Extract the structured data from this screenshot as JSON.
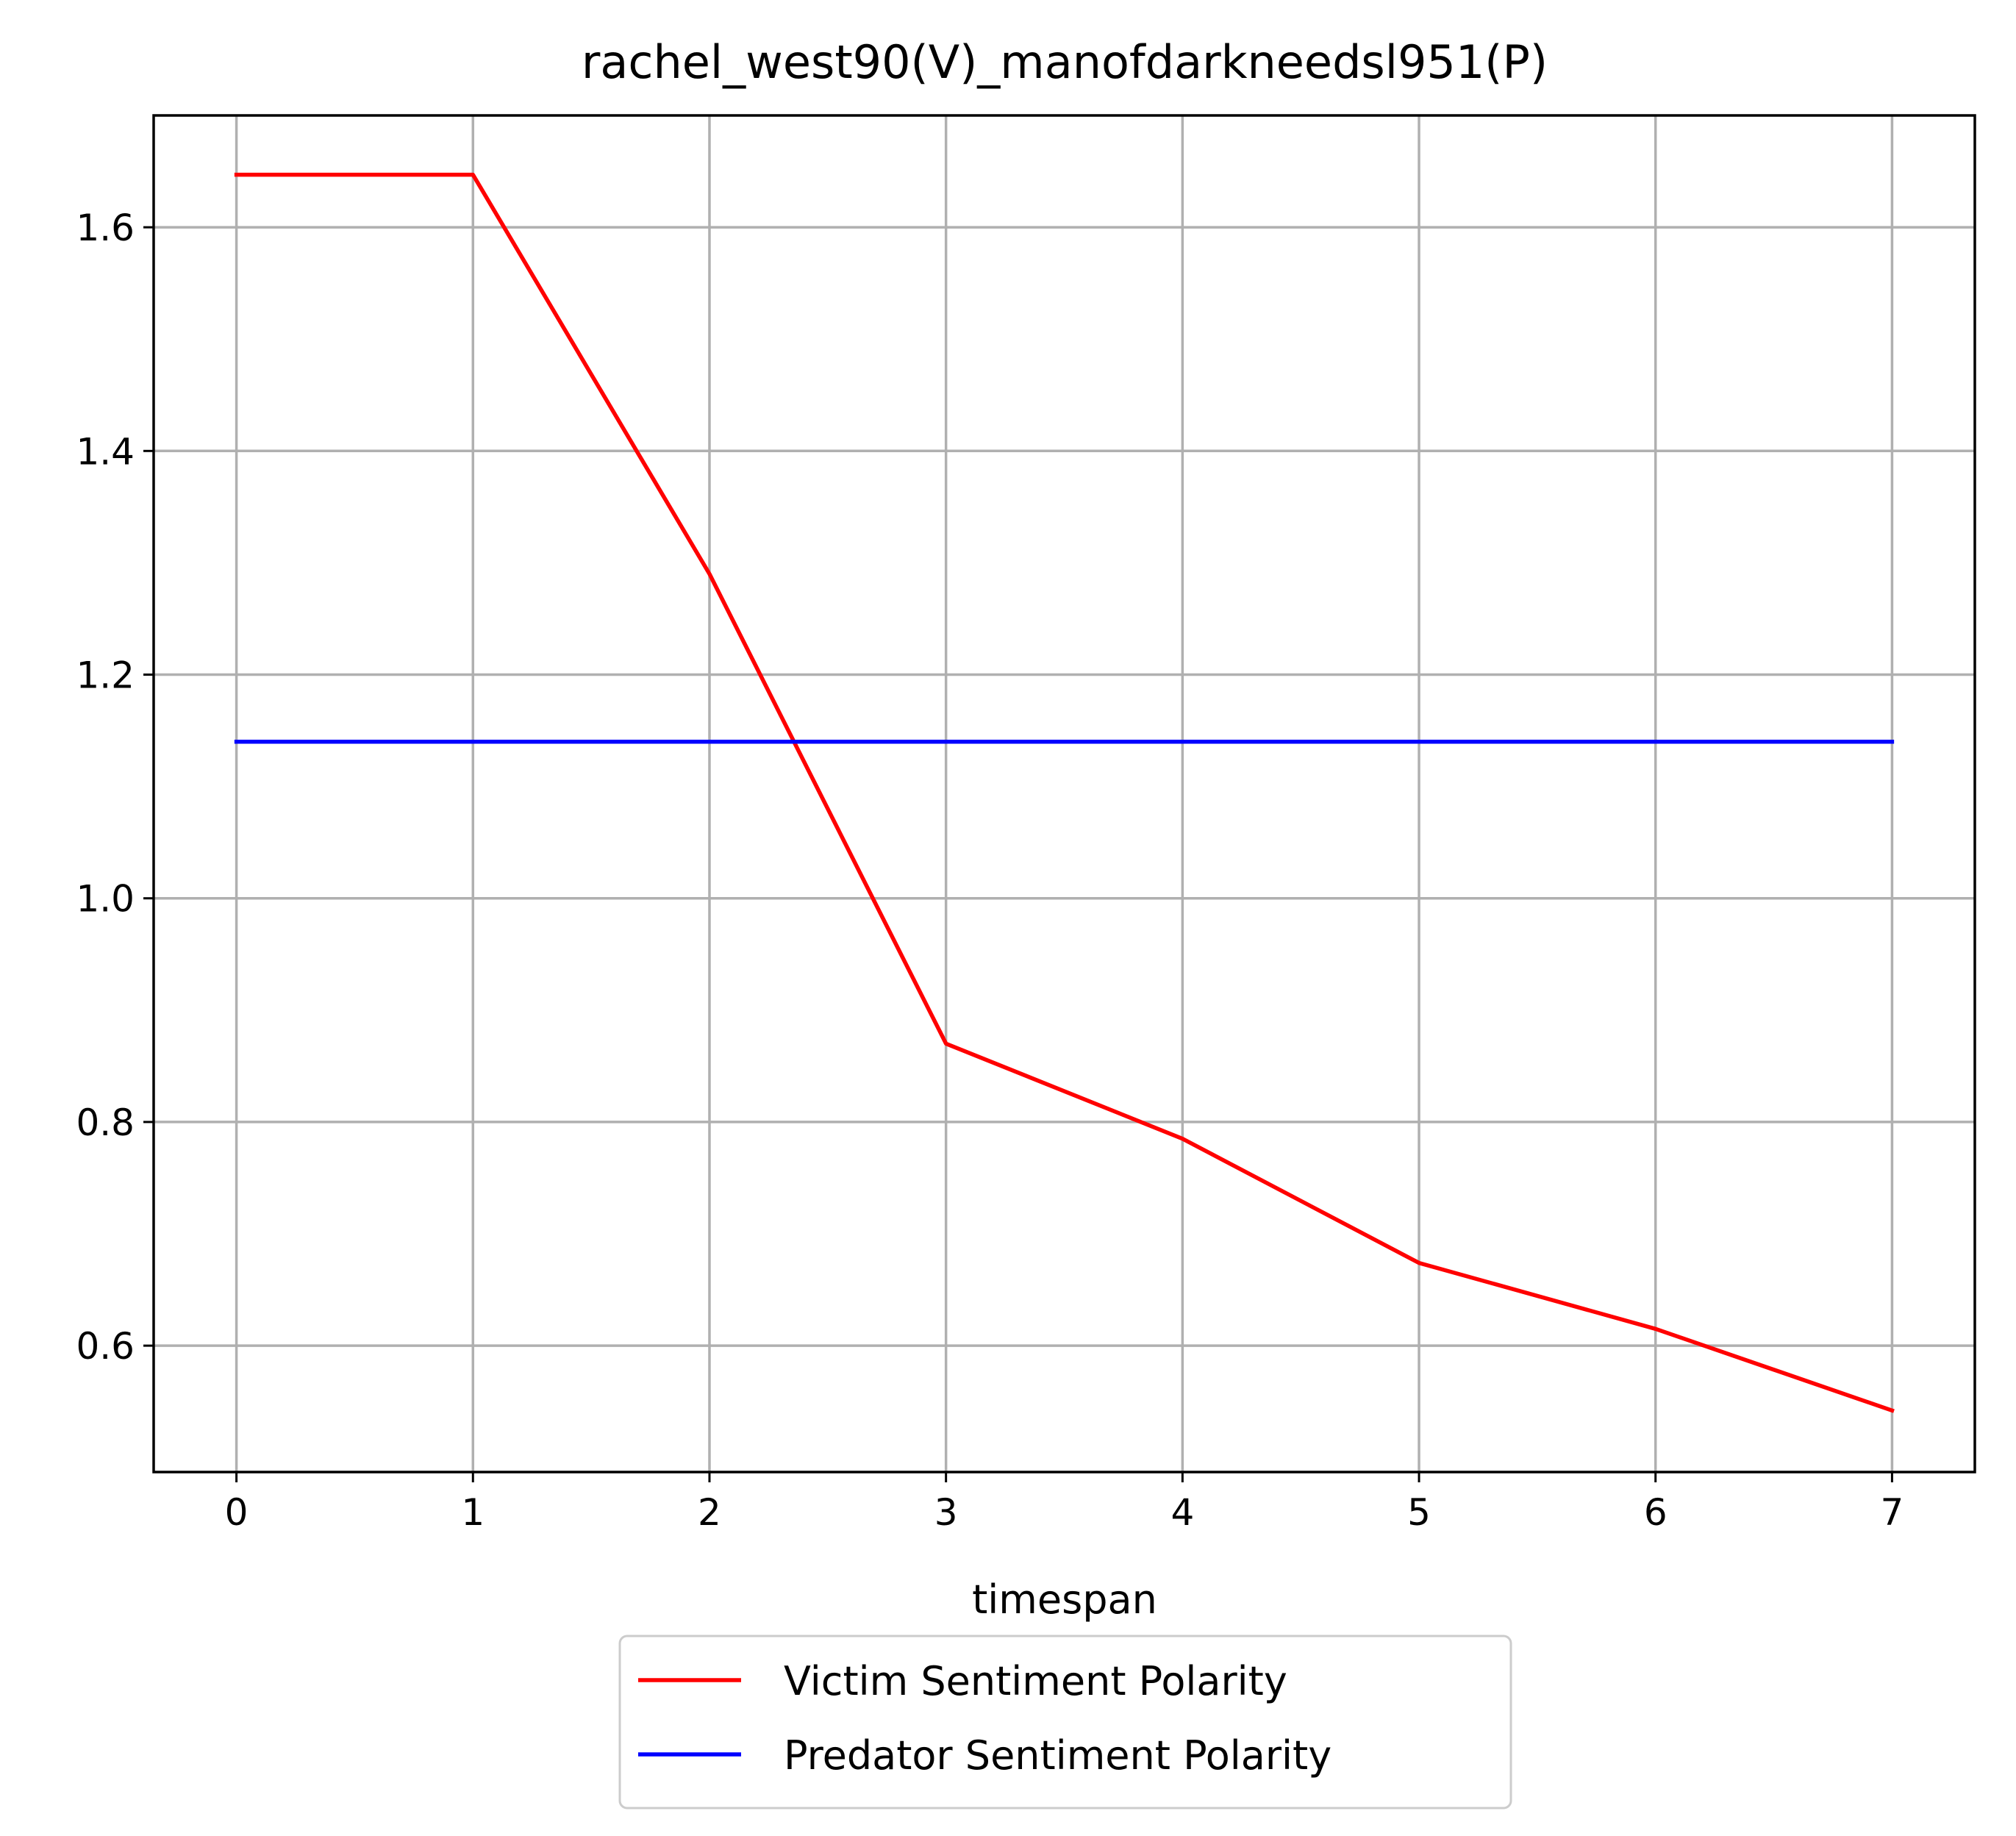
{
  "chart_data": {
    "type": "line",
    "title": "rachel_west90(V)_manofdarkneedsl951(P)",
    "xlabel": "timespan",
    "ylabel": "",
    "x": [
      0,
      1,
      2,
      3,
      4,
      5,
      6,
      7
    ],
    "xlim": [
      -0.35,
      7.35
    ],
    "ylim": [
      0.487,
      1.7
    ],
    "x_ticks": [
      0,
      1,
      2,
      3,
      4,
      5,
      6,
      7
    ],
    "x_tick_labels": [
      "0",
      "1",
      "2",
      "3",
      "4",
      "5",
      "6",
      "7"
    ],
    "y_ticks": [
      0.6,
      0.8,
      1.0,
      1.2,
      1.4,
      1.6
    ],
    "y_tick_labels": [
      "0.6",
      "0.8",
      "1.0",
      "1.2",
      "1.4",
      "1.6"
    ],
    "grid": true,
    "legend_placement": "below",
    "series": [
      {
        "name": "Victim Sentiment Polarity",
        "color": "#ff0000",
        "values": [
          1.647,
          1.647,
          1.29,
          0.87,
          0.785,
          0.674,
          0.615,
          0.542
        ]
      },
      {
        "name": "Predator Sentiment Polarity",
        "color": "#0000ff",
        "values": [
          1.14,
          1.14,
          1.14,
          1.14,
          1.14,
          1.14,
          1.14,
          1.14
        ]
      }
    ]
  }
}
